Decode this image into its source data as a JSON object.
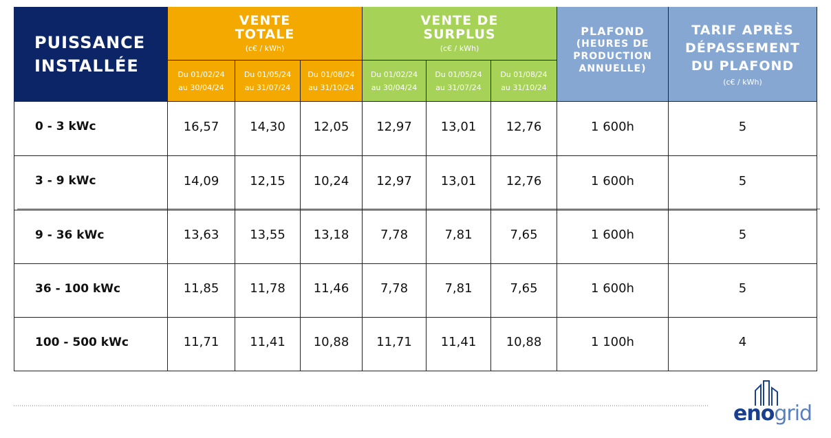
{
  "header": {
    "power": "PUISSANCE INSTALLÉE",
    "total": {
      "title": "VENTE TOTALE",
      "unit": "(c€ / kWh)"
    },
    "surplus": {
      "title": "VENTE DE SURPLUS",
      "unit": "(c€ / kWh)"
    },
    "periods": [
      {
        "from": "Du 01/02/24",
        "to": "au 30/04/24"
      },
      {
        "from": "Du 01/05/24",
        "to": "au 31/07/24"
      },
      {
        "from": "Du 01/08/24",
        "to": "au 31/10/24"
      }
    ],
    "ceiling": {
      "title": "PLAFOND",
      "note": "(HEURES DE PRODUCTION ANNUELLE)"
    },
    "tariff": {
      "title": "TARIF APRÈS DÉPASSEMENT DU PLAFOND",
      "unit": "(c€ / kWh)"
    }
  },
  "table": {
    "rows": [
      [
        "0 - 3 kWc",
        "16,57",
        "14,30",
        "12,05",
        "12,97",
        "13,01",
        "12,76",
        "1 600h",
        "5"
      ],
      [
        "3 - 9 kWc",
        "14,09",
        "12,15",
        "10,24",
        "12,97",
        "13,01",
        "12,76",
        "1 600h",
        "5"
      ],
      [
        "9 - 36 kWc",
        "13,63",
        "13,55",
        "13,18",
        "7,78",
        "7,81",
        "7,65",
        "1 600h",
        "5"
      ],
      [
        "36 - 100 kWc",
        "11,85",
        "11,78",
        "11,46",
        "7,78",
        "7,81",
        "7,65",
        "1 600h",
        "5"
      ],
      [
        "100 - 500 kWc",
        "11,71",
        "11,41",
        "10,88",
        "11,71",
        "11,41",
        "10,88",
        "1 100h",
        "4"
      ]
    ]
  },
  "logo": {
    "part1": "eno",
    "part2": "grid"
  }
}
